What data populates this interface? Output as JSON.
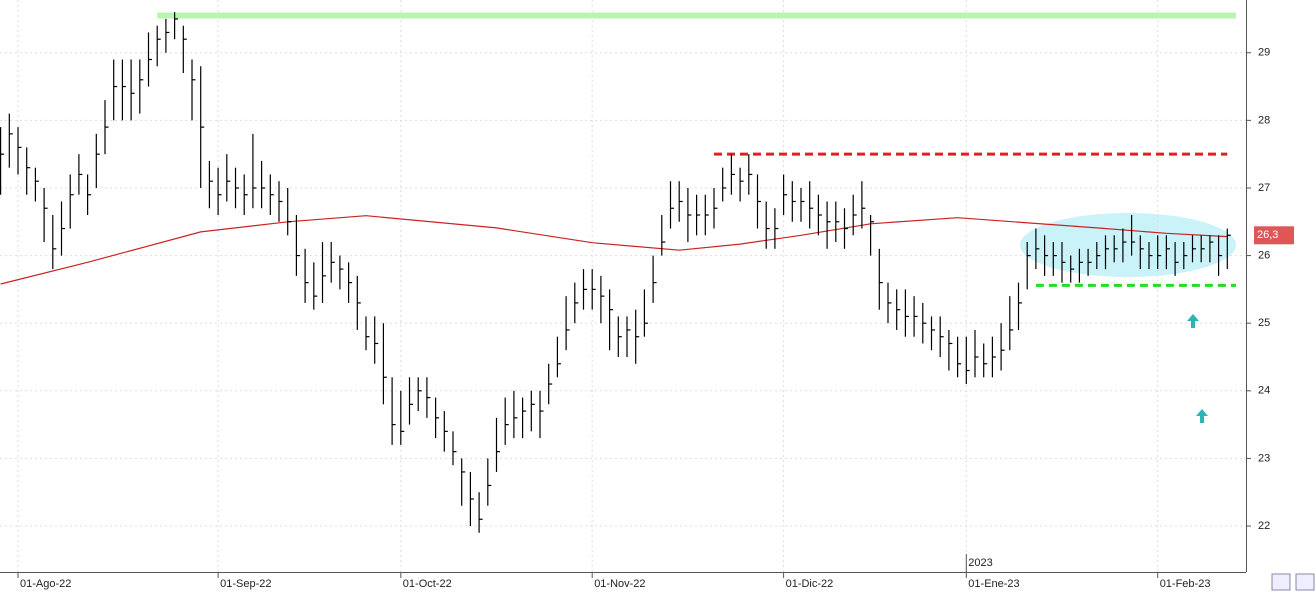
{
  "chart_data": {
    "type": "ohlc",
    "xlim": [
      -0.07,
      143.15
    ],
    "xticks": [
      {
        "value": 2,
        "label": "01-Ago-22"
      },
      {
        "value": 25,
        "label": "01-Sep-22"
      },
      {
        "value": 46,
        "label": "01-Oct-22"
      },
      {
        "value": 68,
        "label": "01-Nov-22"
      },
      {
        "value": 90,
        "label": "01-Dic-22"
      },
      {
        "value": 111,
        "label": "01-Ene-23"
      },
      {
        "value": 133,
        "label": "01-Feb-23"
      }
    ],
    "year_marker": {
      "value": 111,
      "label": "2023"
    },
    "ylim": [
      21.32,
      29.78
    ],
    "yticks": [
      22,
      23,
      24,
      25,
      26,
      27,
      28,
      29
    ],
    "grid": true,
    "color": "#000000",
    "high": [
      27.9,
      28.1,
      27.9,
      27.6,
      27.3,
      27.0,
      26.6,
      26.8,
      27.2,
      27.5,
      27.2,
      27.8,
      28.3,
      28.9,
      28.9,
      28.9,
      28.9,
      29.3,
      29.4,
      29.5,
      29.6,
      29.4,
      28.9,
      28.8,
      27.4,
      27.3,
      27.5,
      27.3,
      27.2,
      27.8,
      27.4,
      27.2,
      27.1,
      27.0,
      26.6,
      26.1,
      25.9,
      26.2,
      26.2,
      26.0,
      25.9,
      25.7,
      25.1,
      25.1,
      25.0,
      24.2,
      24.0,
      24.2,
      24.2,
      24.2,
      23.9,
      23.7,
      23.4,
      23.0,
      22.8,
      22.5,
      23.0,
      23.6,
      23.9,
      24.0,
      23.9,
      24.0,
      24.0,
      24.4,
      24.8,
      25.4,
      25.6,
      25.8,
      25.8,
      25.7,
      25.5,
      25.1,
      25.1,
      25.2,
      25.5,
      26.0,
      26.6,
      27.1,
      27.1,
      27.0,
      26.9,
      26.9,
      27.0,
      27.3,
      27.5,
      27.3,
      27.5,
      27.2,
      26.8,
      26.7,
      27.2,
      27.1,
      27.0,
      27.1,
      26.9,
      26.8,
      26.8,
      26.7,
      26.9,
      27.1,
      26.6,
      26.1,
      25.6,
      25.5,
      25.5,
      25.4,
      25.3,
      25.1,
      25.1,
      24.9,
      24.8,
      24.8,
      24.9,
      24.7,
      24.8,
      25.0,
      25.4,
      25.6,
      26.2,
      26.4,
      26.3,
      26.2,
      26.2,
      26.0,
      26.1,
      26.1,
      26.2,
      26.3,
      26.3,
      26.4,
      26.6,
      26.3,
      26.2,
      26.3,
      26.3,
      26.2,
      26.2,
      26.3,
      26.3,
      26.3,
      26.3,
      26.4
    ],
    "low": [
      26.9,
      27.3,
      27.2,
      26.9,
      26.8,
      26.2,
      25.8,
      26.0,
      26.4,
      26.9,
      26.6,
      27.0,
      27.5,
      28.0,
      28.0,
      28.0,
      28.1,
      28.5,
      28.8,
      29.0,
      29.2,
      28.7,
      28.0,
      27.0,
      26.7,
      26.6,
      26.8,
      26.7,
      26.6,
      26.7,
      26.7,
      26.6,
      26.5,
      26.3,
      25.7,
      25.3,
      25.2,
      25.3,
      25.6,
      25.5,
      25.3,
      24.9,
      24.6,
      24.4,
      23.8,
      23.2,
      23.2,
      23.5,
      23.7,
      23.6,
      23.3,
      23.1,
      22.9,
      22.3,
      22.0,
      21.9,
      22.3,
      22.8,
      23.2,
      23.3,
      23.3,
      23.4,
      23.3,
      23.8,
      24.2,
      24.6,
      25.0,
      25.2,
      25.2,
      25.0,
      24.6,
      24.5,
      24.5,
      24.4,
      24.8,
      25.3,
      26.0,
      26.4,
      26.5,
      26.2,
      26.3,
      26.3,
      26.4,
      26.8,
      26.9,
      26.8,
      26.9,
      26.4,
      26.1,
      26.1,
      26.6,
      26.5,
      26.5,
      26.4,
      26.3,
      26.1,
      26.2,
      26.1,
      26.3,
      26.4,
      26.0,
      25.2,
      25.0,
      24.9,
      24.8,
      24.8,
      24.7,
      24.6,
      24.5,
      24.3,
      24.2,
      24.1,
      24.2,
      24.2,
      24.2,
      24.3,
      24.6,
      24.9,
      25.5,
      25.8,
      25.7,
      25.7,
      25.6,
      25.6,
      25.6,
      25.7,
      25.8,
      25.8,
      25.9,
      25.9,
      26.0,
      25.8,
      25.8,
      25.8,
      25.8,
      25.7,
      25.8,
      25.9,
      25.9,
      25.9,
      25.7,
      25.8
    ],
    "close": [
      27.5,
      27.8,
      27.6,
      27.3,
      27.1,
      26.7,
      26.1,
      26.4,
      26.9,
      27.2,
      26.9,
      27.5,
      27.9,
      28.5,
      28.5,
      28.4,
      28.6,
      28.9,
      29.2,
      29.3,
      29.5,
      29.2,
      28.6,
      27.9,
      27.1,
      26.9,
      27.1,
      27.0,
      26.9,
      27.0,
      27.0,
      26.9,
      26.8,
      26.5,
      26.0,
      25.6,
      25.4,
      25.7,
      25.9,
      25.8,
      25.6,
      25.3,
      24.8,
      24.7,
      24.2,
      23.5,
      23.4,
      23.8,
      24.0,
      23.9,
      23.6,
      23.4,
      23.1,
      22.8,
      22.4,
      22.1,
      22.6,
      23.1,
      23.5,
      23.6,
      23.7,
      23.8,
      23.7,
      24.1,
      24.4,
      24.9,
      25.3,
      25.5,
      25.5,
      25.4,
      25.2,
      24.8,
      24.9,
      24.8,
      25.0,
      25.6,
      26.2,
      26.7,
      26.8,
      26.6,
      26.6,
      26.6,
      26.7,
      27.0,
      27.2,
      27.1,
      27.2,
      26.8,
      26.4,
      26.4,
      26.9,
      26.8,
      26.8,
      26.7,
      26.6,
      26.5,
      26.5,
      26.4,
      26.6,
      26.7,
      26.5,
      25.6,
      25.3,
      25.2,
      25.1,
      25.1,
      25.0,
      24.9,
      24.8,
      24.7,
      24.4,
      24.3,
      24.5,
      24.4,
      24.5,
      24.6,
      24.9,
      25.3,
      26.0,
      26.1,
      26.0,
      26.0,
      25.9,
      25.8,
      25.9,
      25.9,
      26.0,
      26.1,
      26.1,
      26.2,
      26.2,
      26.1,
      26.0,
      26.0,
      26.1,
      25.9,
      26.0,
      26.1,
      26.1,
      26.2,
      26.0,
      26.3
    ],
    "moving_average": {
      "color": "#cc2222",
      "x": [
        0,
        10,
        23,
        33,
        42,
        57,
        68,
        78,
        85,
        92,
        100,
        110,
        126,
        134,
        141
      ],
      "values": [
        25.58,
        25.9,
        26.35,
        26.5,
        26.59,
        26.41,
        26.19,
        26.08,
        26.17,
        26.3,
        26.47,
        26.56,
        26.41,
        26.33,
        26.28
      ]
    },
    "levels": [
      {
        "value": 29.55,
        "from": 18,
        "to": 142,
        "color": "#b8f5b0",
        "style": "solid"
      },
      {
        "value": 27.5,
        "from": 82,
        "to": 141,
        "color": "#e02020",
        "style": "dashed"
      },
      {
        "value": 25.56,
        "from": 119,
        "to": 142,
        "color": "#22dd22",
        "style": "dashed"
      }
    ],
    "last_price_label": "26,3"
  }
}
